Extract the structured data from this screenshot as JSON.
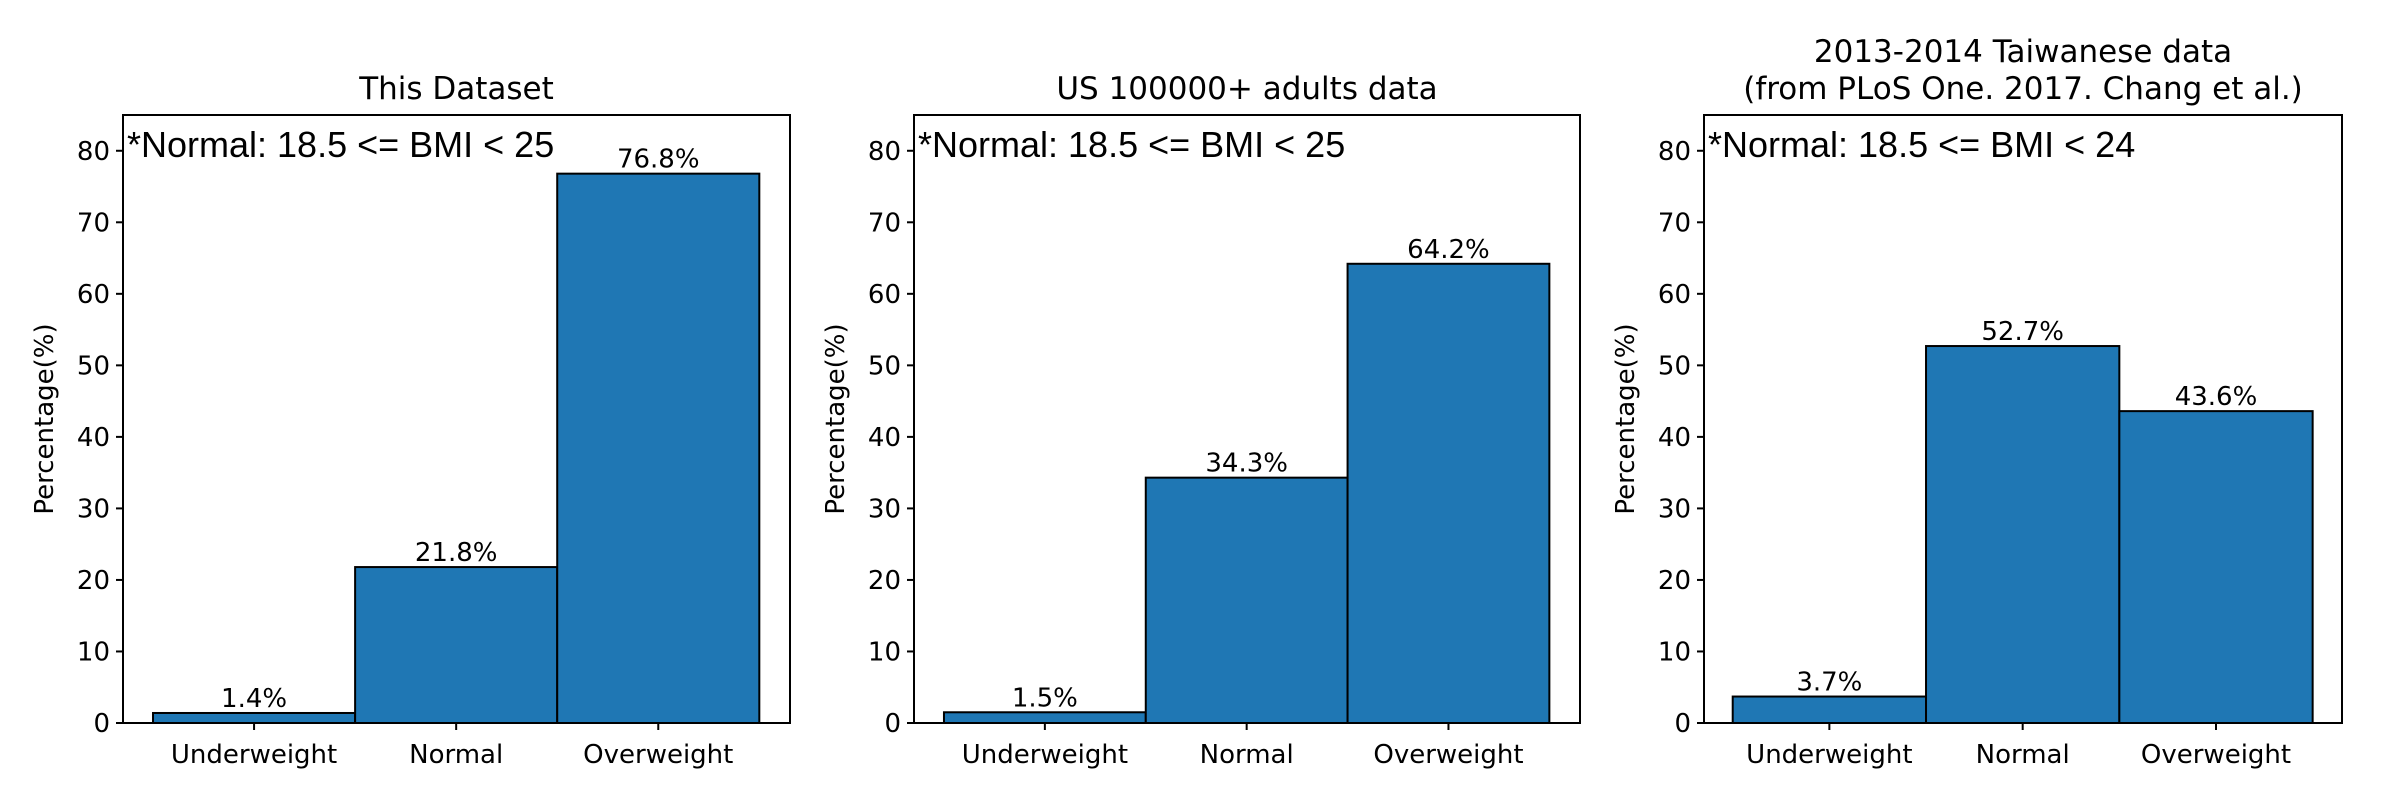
{
  "chart_data": [
    {
      "type": "bar",
      "title": [
        "This Dataset"
      ],
      "ylabel": "Percentage(%)",
      "xlabel": "",
      "categories": [
        "Underweight",
        "Normal",
        "Overweight"
      ],
      "values": [
        1.4,
        21.8,
        76.8
      ],
      "value_labels": [
        "1.4%",
        "21.8%",
        "76.8%"
      ],
      "annotation": "*Normal: 18.5 <= BMI < 25",
      "ylim": [
        0,
        85
      ],
      "yticks": [
        0,
        10,
        20,
        30,
        40,
        50,
        60,
        70,
        80
      ],
      "grid": false,
      "bar_color": "#1f77b4"
    },
    {
      "type": "bar",
      "title": [
        "US 100000+ adults data"
      ],
      "ylabel": "Percentage(%)",
      "xlabel": "",
      "categories": [
        "Underweight",
        "Normal",
        "Overweight"
      ],
      "values": [
        1.5,
        34.3,
        64.2
      ],
      "value_labels": [
        "1.5%",
        "34.3%",
        "64.2%"
      ],
      "annotation": "*Normal: 18.5 <= BMI < 25",
      "ylim": [
        0,
        85
      ],
      "yticks": [
        0,
        10,
        20,
        30,
        40,
        50,
        60,
        70,
        80
      ],
      "grid": false,
      "bar_color": "#1f77b4"
    },
    {
      "type": "bar",
      "title": [
        "2013-2014 Taiwanese data",
        "(from PLoS One. 2017. Chang et al.)"
      ],
      "ylabel": "Percentage(%)",
      "xlabel": "",
      "categories": [
        "Underweight",
        "Normal",
        "Overweight"
      ],
      "values": [
        3.7,
        52.7,
        43.6
      ],
      "value_labels": [
        "3.7%",
        "52.7%",
        "43.6%"
      ],
      "annotation": "*Normal: 18.5 <= BMI < 24",
      "ylim": [
        0,
        85
      ],
      "yticks": [
        0,
        10,
        20,
        30,
        40,
        50,
        60,
        70,
        80
      ],
      "grid": false,
      "bar_color": "#1f77b4"
    }
  ]
}
